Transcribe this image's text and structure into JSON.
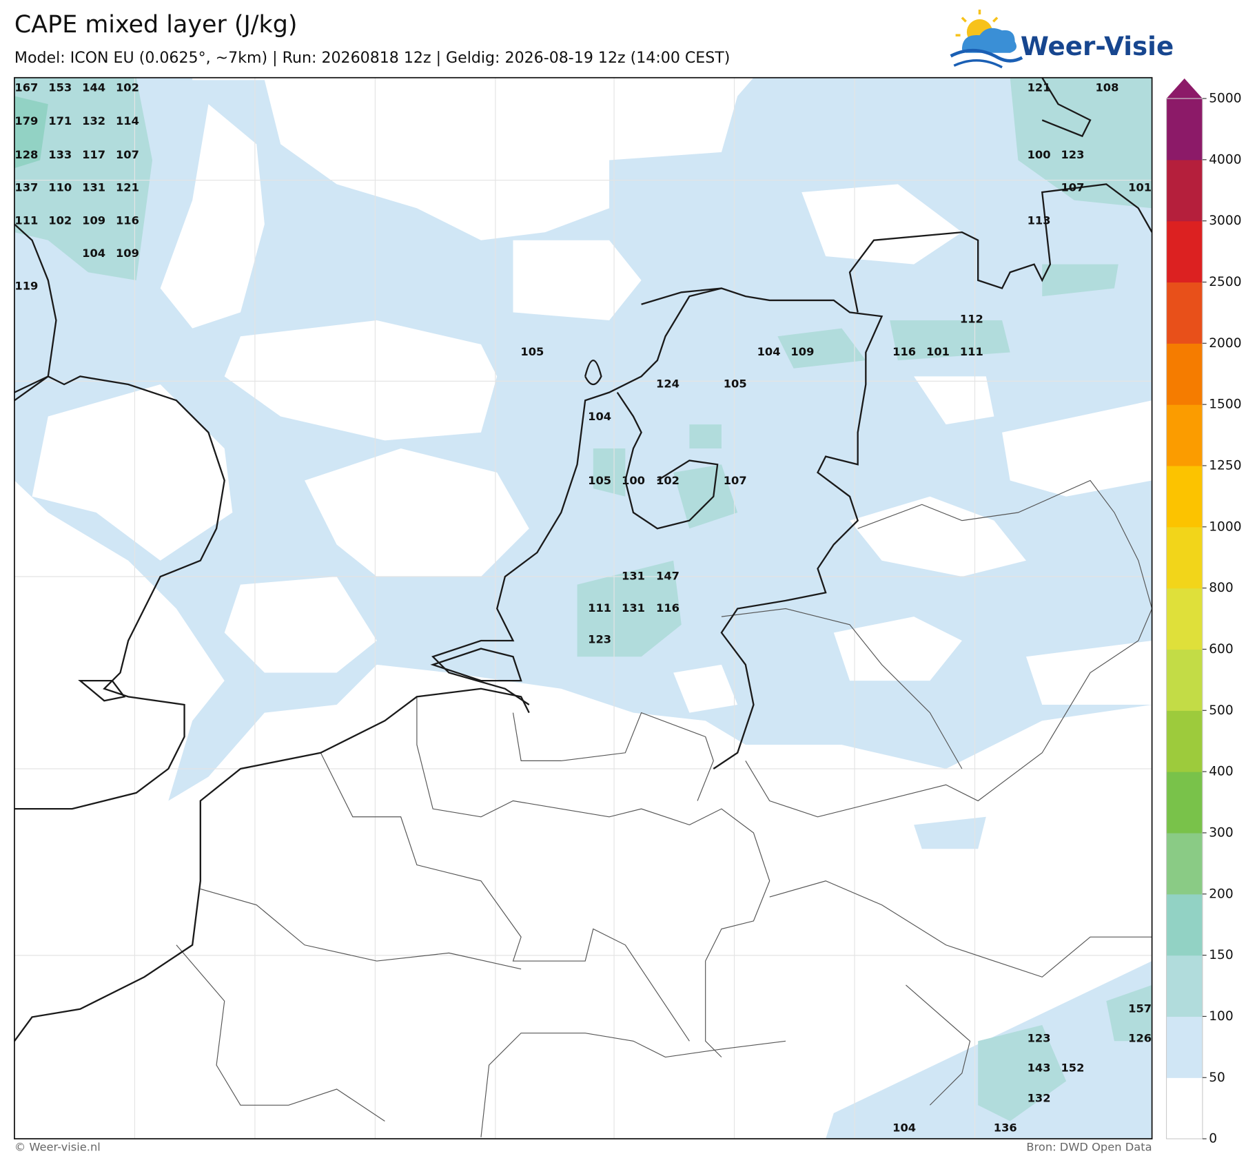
{
  "header": {
    "title": "CAPE mixed layer (J/kg)",
    "subtitle": "Model: ICON EU (0.0625°, ~7km)  |  Run: 20260818 12z  |  Geldig: 2026-08-19 12z (14:00 CEST)",
    "logo": "Weer-Visie"
  },
  "map": {
    "labels": [
      167,
      153,
      144,
      102,
      121,
      108,
      179,
      171,
      132,
      114,
      128,
      133,
      117,
      107,
      100,
      123,
      137,
      110,
      131,
      121,
      107,
      101,
      111,
      102,
      109,
      116,
      113,
      104,
      109,
      119,
      112,
      105,
      104,
      109,
      116,
      101,
      111,
      124,
      105,
      104,
      105,
      100,
      102,
      107,
      131,
      147,
      111,
      131,
      116,
      123,
      157,
      123,
      126,
      143,
      152,
      132,
      104,
      136
    ]
  },
  "colorbar": {
    "ticks": [
      0,
      50,
      100,
      150,
      200,
      300,
      400,
      500,
      600,
      800,
      1000,
      1250,
      1500,
      2000,
      2500,
      3000,
      4000,
      5000
    ],
    "colors": [
      "#ffffff",
      "#d0e6f5",
      "#b1dcdc",
      "#92d2c4",
      "#8acb85",
      "#79c24a",
      "#9dcb3c",
      "#c3dc46",
      "#dfe03a",
      "#f2d51a",
      "#fcc300",
      "#fb9c00",
      "#f57c00",
      "#e8501a",
      "#dc2121",
      "#b51f3c",
      "#8c1a68"
    ],
    "extend_color": "#8c1a68"
  },
  "footer": {
    "left": "© Weer-visie.nl",
    "right": "Bron: DWD Open Data"
  }
}
